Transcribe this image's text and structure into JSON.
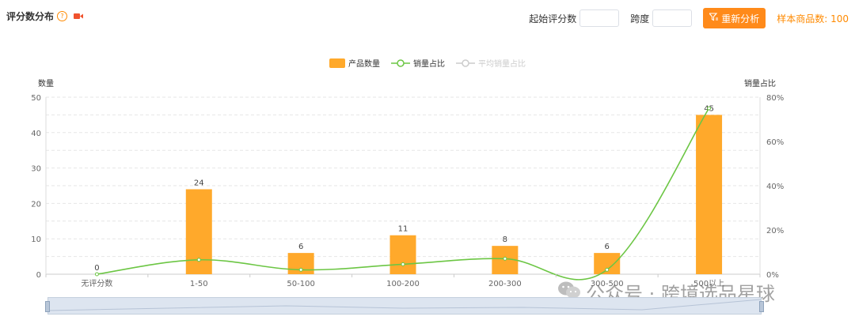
{
  "header": {
    "title": "评分数分布",
    "help": "?"
  },
  "controls": {
    "start_label": "起始评分数",
    "span_label": "跨度",
    "analyze_label": "重新分析",
    "sample_label": "样本商品数: 100"
  },
  "legend": {
    "bar": "产品数量",
    "line": "销量占比",
    "avg": "平均销量占比"
  },
  "watermark": {
    "text": "公众号 · 跨境选品星球"
  },
  "chart_data": {
    "type": "bar",
    "categories": [
      "无评分数",
      "1-50",
      "50-100",
      "100-200",
      "200-300",
      "300-500",
      "500以上"
    ],
    "series": [
      {
        "name": "产品数量",
        "type": "bar",
        "axis": "left",
        "values": [
          0,
          24,
          6,
          11,
          8,
          6,
          45
        ],
        "color": "#ffa92b"
      },
      {
        "name": "销量占比",
        "type": "line",
        "axis": "right",
        "values": [
          0,
          6.5,
          2,
          4.5,
          7,
          2,
          75
        ],
        "color": "#6cc644"
      }
    ],
    "ylabel_left": "数量",
    "ylabel_right": "销量占比",
    "ylim_left": [
      0,
      50
    ],
    "ylim_right": [
      0,
      80
    ],
    "yticks_left": [
      "0",
      "10",
      "20",
      "30",
      "40",
      "50"
    ],
    "yticks_right": [
      "0%",
      "20%",
      "40%",
      "60%",
      "80%"
    ],
    "grid": true,
    "legend_position": "top-center"
  }
}
